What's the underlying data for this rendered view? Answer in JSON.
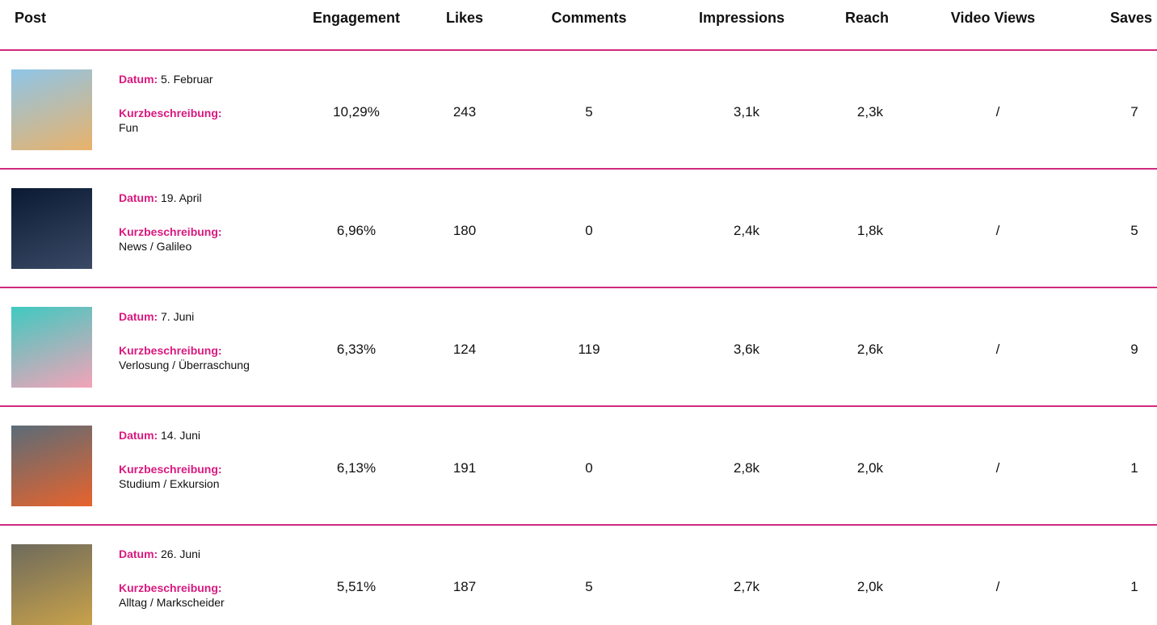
{
  "table": {
    "columns": [
      "Post",
      "Engagement",
      "Likes",
      "Comments",
      "Impressions",
      "Reach",
      "Video Views",
      "Saves"
    ],
    "labels": {
      "date": "Datum:",
      "description": "Kurzbeschreibung:"
    },
    "rows": [
      {
        "date": "5. Februar",
        "description": "Fun",
        "metrics": [
          "10,29%",
          "243",
          "5",
          "3,1k",
          "2,3k",
          "/",
          "7"
        ]
      },
      {
        "date": "19. April",
        "description": "News / Galileo",
        "metrics": [
          "6,96%",
          "180",
          "0",
          "2,4k",
          "1,8k",
          "/",
          "5"
        ]
      },
      {
        "date": "7. Juni",
        "description": "Verlosung / Überraschung",
        "metrics": [
          "6,33%",
          "124",
          "119",
          "3,6k",
          "2,6k",
          "/",
          "9"
        ]
      },
      {
        "date": "14. Juni",
        "description": "Studium / Exkursion",
        "metrics": [
          "6,13%",
          "191",
          "0",
          "2,8k",
          "2,0k",
          "/",
          "1"
        ]
      },
      {
        "date": "26. Juni",
        "description": "Alltag / Markscheider",
        "metrics": [
          "5,51%",
          "187",
          "5",
          "2,7k",
          "2,0k",
          "/",
          "1"
        ]
      }
    ]
  }
}
